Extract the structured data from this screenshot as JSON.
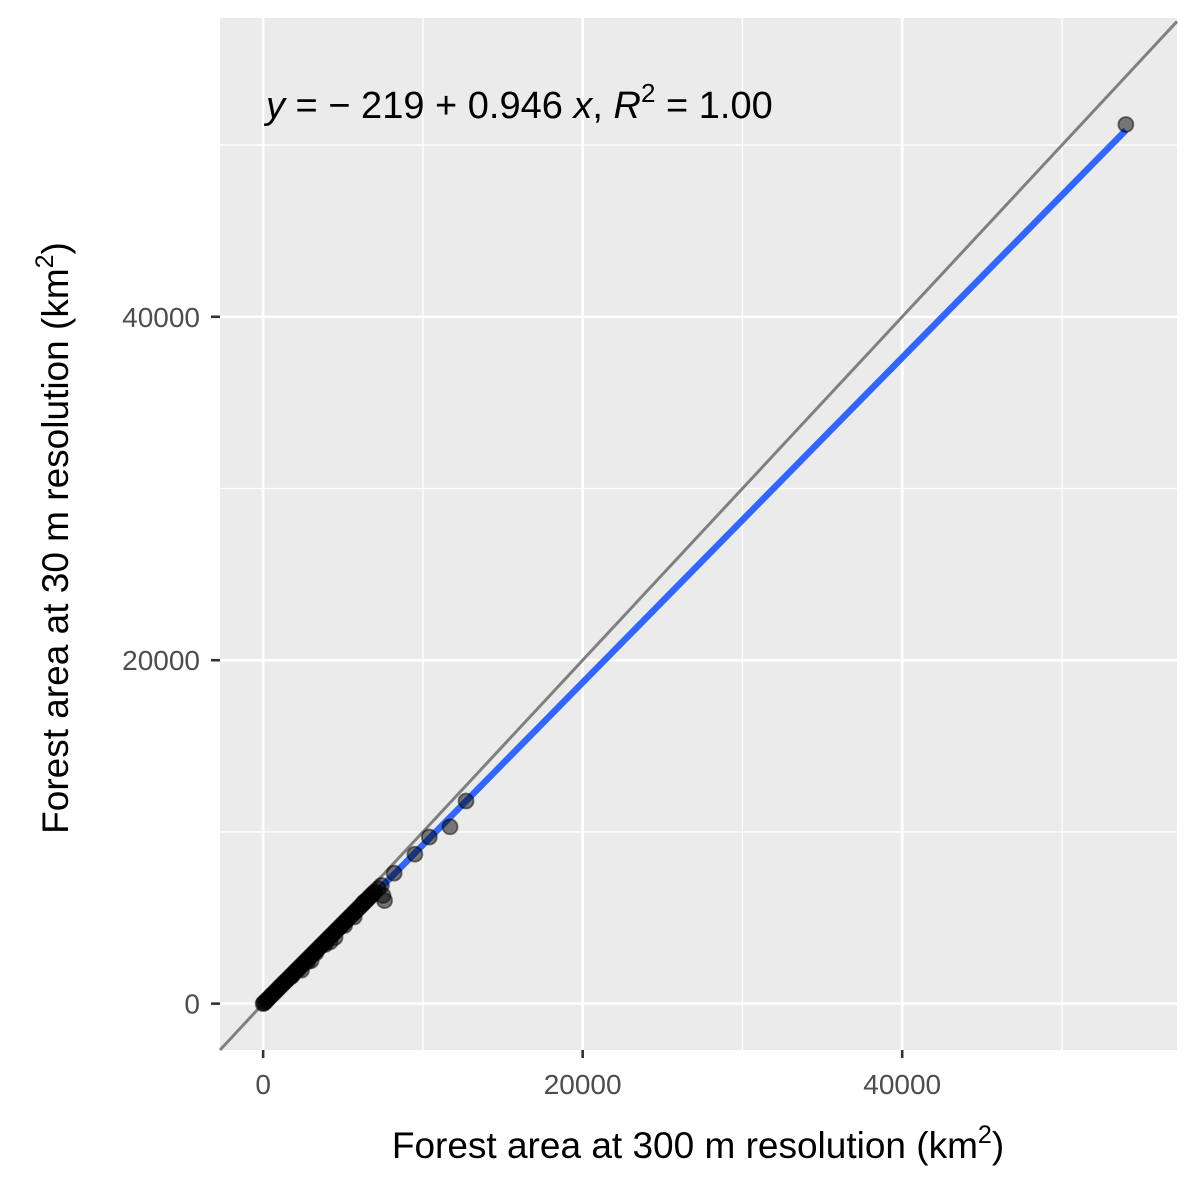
{
  "chart_data": {
    "type": "scatter",
    "title": "",
    "xlabel": "Forest area at 300 m resolution (km²)",
    "xlabel_parts": {
      "pre": "Forest area at 300 m resolution (km",
      "sup": "2",
      "post": ")"
    },
    "ylabel": "Forest area at 30 m resolution (km²)",
    "ylabel_parts": {
      "pre": "Forest area at 30 m resolution (km",
      "sup": "2",
      "post": ")"
    },
    "xlim": [
      -2700,
      57200
    ],
    "ylim": [
      -2700,
      57400
    ],
    "x_ticks": [
      0,
      20000,
      40000
    ],
    "x_tick_labels": [
      "0",
      "20000",
      "40000"
    ],
    "y_ticks": [
      0,
      20000,
      40000
    ],
    "y_tick_labels": [
      "0",
      "20000",
      "40000"
    ],
    "x_minor": [
      10000,
      30000,
      50000
    ],
    "y_minor": [
      10000,
      30000,
      50000
    ],
    "grid": true,
    "panel_background": "#ebebeb",
    "annotation": {
      "y_var": "y",
      "eq_mid": " = − 219 + 0.946 ",
      "x_var": "x",
      "comma": ", ",
      "r_var": "R",
      "r_sup": "2",
      "r_tail": " = 1.00"
    },
    "reference_line": {
      "type": "identity",
      "color": "#808080"
    },
    "fit_line": {
      "intercept": -219,
      "slope": 0.946,
      "x_range": [
        0,
        54000
      ],
      "color": "#3366ff"
    },
    "points": {
      "color": "#000000",
      "opacity": 0.5,
      "x": [
        0,
        50,
        120,
        200,
        300,
        400,
        500,
        600,
        700,
        800,
        900,
        1000,
        1100,
        1200,
        1300,
        1400,
        1500,
        1600,
        1700,
        1800,
        1900,
        2000,
        2100,
        2200,
        2300,
        2400,
        2500,
        2600,
        2700,
        2800,
        2900,
        3000,
        3100,
        3200,
        3300,
        3400,
        3500,
        3600,
        3700,
        3800,
        3900,
        4000,
        4100,
        4200,
        4300,
        4400,
        4500,
        4600,
        4700,
        4800,
        4900,
        5000,
        5100,
        5200,
        5300,
        5400,
        5500,
        5600,
        5700,
        5800,
        5900,
        6000,
        6100,
        6200,
        6300,
        6400,
        6500,
        6600,
        6700,
        6800,
        6900,
        7000,
        7200,
        7400,
        7600,
        8200,
        9500,
        10400,
        11700,
        12700,
        54000,
        2400,
        2800,
        3300,
        3900,
        4500,
        5100,
        5700,
        6300,
        7500,
        3000,
        4200,
        1800,
        2200
      ],
      "y": [
        0,
        40,
        90,
        180,
        270,
        360,
        460,
        560,
        640,
        740,
        830,
        930,
        1020,
        1110,
        1210,
        1300,
        1390,
        1480,
        1580,
        1670,
        1760,
        1860,
        1950,
        2040,
        2140,
        2230,
        2320,
        2420,
        2510,
        2600,
        2700,
        2790,
        2880,
        2980,
        3070,
        3160,
        3250,
        3350,
        3440,
        3530,
        3630,
        3720,
        3810,
        3910,
        4000,
        4090,
        4190,
        4280,
        4370,
        4470,
        4560,
        4650,
        4750,
        4840,
        4930,
        5030,
        5120,
        5210,
        5310,
        5400,
        5490,
        5590,
        5680,
        5770,
        5870,
        5960,
        6050,
        6150,
        6240,
        6330,
        6430,
        6520,
        6700,
        6880,
        6000,
        7600,
        8700,
        9700,
        10300,
        11800,
        51200,
        1950,
        2450,
        2950,
        3450,
        3850,
        4550,
        5050,
        5900,
        6300,
        2500,
        3600,
        1600,
        2000
      ]
    }
  }
}
